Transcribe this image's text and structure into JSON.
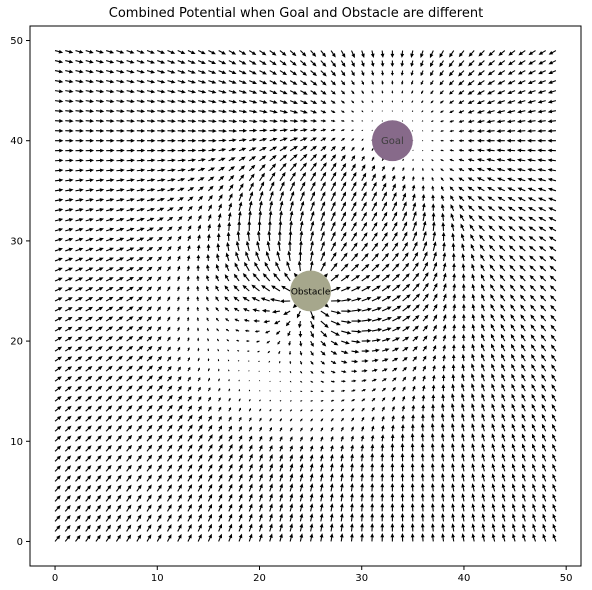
{
  "chart_data": {
    "type": "quiver",
    "title": "Combined Potential when Goal and Obstacle are different",
    "xlabel": "",
    "ylabel": "",
    "xlim": [
      -2.45,
      51.45
    ],
    "ylim": [
      -2.45,
      51.45
    ],
    "xticks": [
      0,
      10,
      20,
      30,
      40,
      50
    ],
    "yticks": [
      0,
      10,
      20,
      30,
      40,
      50
    ],
    "grid": false,
    "field": {
      "x_range": [
        0,
        49
      ],
      "y_range": [
        0,
        49
      ],
      "step": 1,
      "arrow_color": "#000000"
    },
    "goal": {
      "label": "Goal",
      "x": 33,
      "y": 40,
      "radius": 2,
      "influence_radius": 8,
      "color": "#876a8a"
    },
    "obstacle": {
      "label": "Obstacle",
      "x": 25,
      "y": 25,
      "radius": 2,
      "influence_radius": 16,
      "color": "#a6a78c"
    }
  }
}
